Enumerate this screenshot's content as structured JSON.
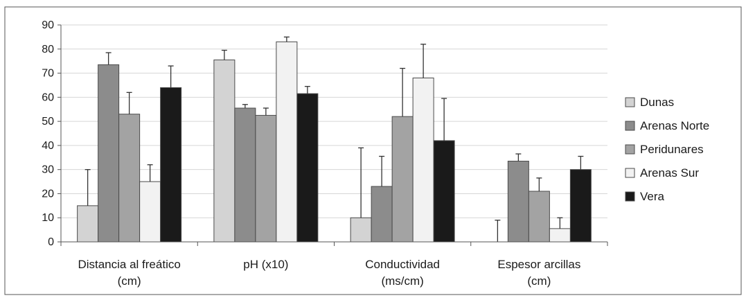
{
  "chart_data": {
    "type": "bar",
    "title": "",
    "xlabel": "",
    "ylabel": "",
    "ylim": [
      0,
      90
    ],
    "yticks": [
      0,
      10,
      20,
      30,
      40,
      50,
      60,
      70,
      80,
      90
    ],
    "grid": "horizontal",
    "legend_position": "right",
    "categories": [
      [
        "Distancia al freático",
        "(cm)"
      ],
      [
        "pH (x10)"
      ],
      [
        "Conductividad",
        "(ms/cm)"
      ],
      [
        "Espesor arcillas",
        "(cm)"
      ]
    ],
    "series": [
      {
        "name": "Dunas",
        "color": "#d3d3d3",
        "values": [
          15,
          75.5,
          10,
          0
        ],
        "errors": [
          15,
          4,
          29,
          9
        ]
      },
      {
        "name": "Arenas Norte",
        "color": "#8c8c8c",
        "values": [
          73.5,
          55.5,
          23,
          33.5
        ],
        "errors": [
          5,
          1.5,
          12.5,
          3
        ]
      },
      {
        "name": "Peridunares",
        "color": "#a3a3a3",
        "values": [
          53,
          52.5,
          52,
          21
        ],
        "errors": [
          9,
          3,
          20,
          5.5
        ]
      },
      {
        "name": "Arenas Sur",
        "color": "#f2f2f2",
        "values": [
          25,
          83,
          68,
          5.5
        ],
        "errors": [
          7,
          2,
          14,
          4.5
        ]
      },
      {
        "name": "Vera",
        "color": "#1a1a1a",
        "values": [
          64,
          61.5,
          42,
          30
        ],
        "errors": [
          9,
          3,
          17.5,
          5.5
        ]
      }
    ]
  }
}
